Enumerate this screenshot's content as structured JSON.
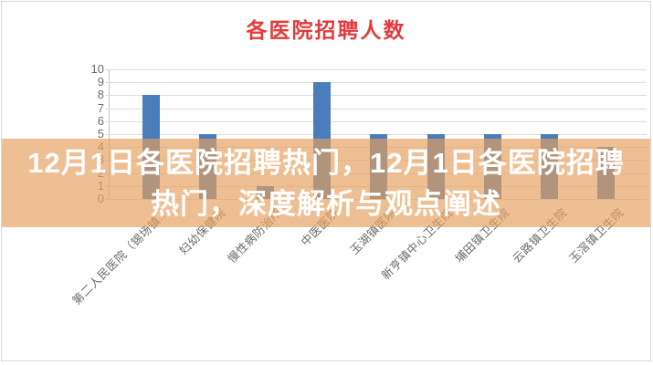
{
  "chart_data": {
    "type": "bar",
    "title": "各医院招聘人数",
    "title_color": "#e23b3c",
    "bar_color": "#4a7dbc",
    "categories": [
      "第二人民医院（锡场镇…",
      "妇幼保健院",
      "慢性病防治所",
      "中医医院",
      "玉湖镇医院",
      "新亨镇中心卫生院",
      "埔田镇卫生院",
      "云路镇卫生院",
      "玉滘镇卫生院"
    ],
    "values": [
      8,
      5,
      1,
      9,
      5,
      5,
      5,
      5,
      4
    ],
    "xlabel": "",
    "ylabel": "",
    "ylim": [
      0,
      10
    ],
    "ytick_step": 1,
    "grid": true,
    "legend": "none"
  },
  "overlay_banner": {
    "lines": [
      "12月1日各医院招聘热门，12月1日各医院招聘",
      "热门，深度解析与观点阐述"
    ],
    "band_color": "rgba(229,160,92,0.67)",
    "text_color": "#ffffff"
  }
}
